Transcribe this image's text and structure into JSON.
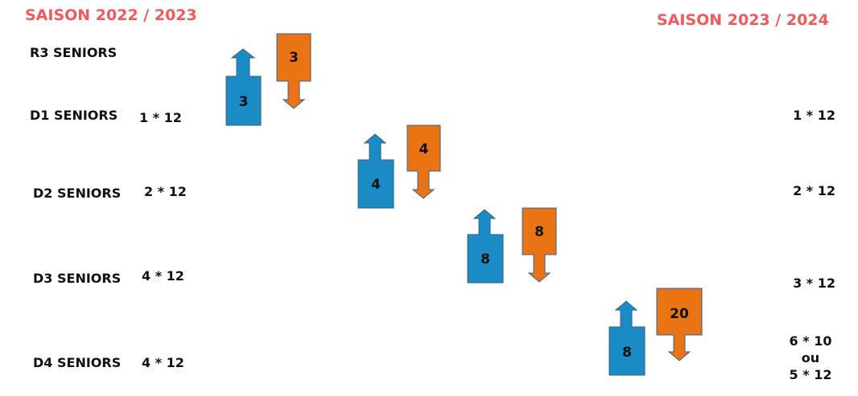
{
  "seasons": {
    "left": "SAISON 2022 / 2023",
    "right": "SAISON 2023 / 2024"
  },
  "colors": {
    "season_title": "#f05a5a",
    "promotion": "#1a8bc4",
    "relegation": "#ea7414",
    "stroke": "#3a5f8a"
  },
  "divisions": [
    {
      "label": "R3 SENIORS",
      "left": "",
      "right": ""
    },
    {
      "label": "D1 SENIORS",
      "left": "1 * 12",
      "right": "1 * 12"
    },
    {
      "label": "D2 SENIORS",
      "left": "2 * 12",
      "right": "2 * 12"
    },
    {
      "label": "D3 SENIORS",
      "left": "4 * 12",
      "right": "3 * 12"
    },
    {
      "label": "D4 SENIORS",
      "left": "4 * 12",
      "right_lines": [
        "6 * 10",
        "ou",
        "5 * 12"
      ]
    }
  ],
  "movements": [
    {
      "between": "R3 SENIORS / D1 SENIORS",
      "up": "3",
      "up_icon": "up-arrow-icon",
      "down": "3",
      "down_icon": "down-arrow-icon"
    },
    {
      "between": "D1 SENIORS / D2 SENIORS",
      "up": "4",
      "up_icon": "up-arrow-icon",
      "down": "4",
      "down_icon": "down-arrow-icon"
    },
    {
      "between": "D2 SENIORS / D3 SENIORS",
      "up": "8",
      "up_icon": "up-arrow-icon",
      "down": "8",
      "down_icon": "down-arrow-icon"
    },
    {
      "between": "D3 SENIORS / D4 SENIORS",
      "up": "8",
      "up_icon": "up-arrow-icon",
      "down": "20",
      "down_icon": "down-arrow-icon"
    }
  ]
}
